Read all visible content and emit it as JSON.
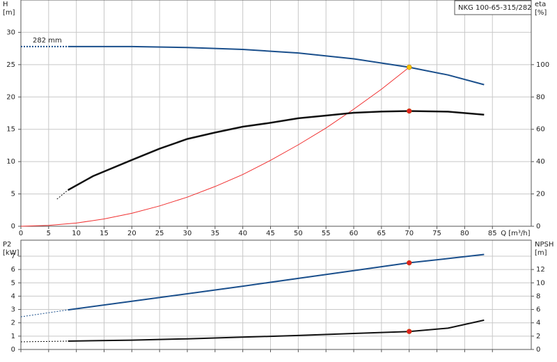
{
  "chart_data": [
    {
      "type": "line",
      "title": "NKG 100-65-315/282",
      "xlabel": "Q [m³/h]",
      "ylabel": [
        "H",
        "[m]"
      ],
      "y2label": [
        "eta",
        "[%]"
      ],
      "annotation": "282 mm",
      "xlim": [
        0,
        92
      ],
      "xticks": [
        0,
        5,
        10,
        15,
        20,
        25,
        30,
        35,
        40,
        45,
        50,
        55,
        60,
        65,
        70,
        75,
        80,
        85
      ],
      "xtick_labels": true,
      "ylim": [
        0,
        35
      ],
      "yticks": [
        0,
        5,
        10,
        15,
        20,
        25,
        30
      ],
      "y2lim": [
        0,
        140
      ],
      "y2ticks": [
        0,
        20,
        40,
        60,
        80,
        100
      ],
      "grid": true,
      "series": [
        {
          "color": "#1a4f8c",
          "width": 2,
          "dash": true,
          "axis": "y",
          "x": [
            0,
            8.5
          ],
          "values": [
            27.8,
            27.8
          ]
        },
        {
          "color": "#1a4f8c",
          "width": 2,
          "dash": false,
          "axis": "y",
          "x": [
            8.5,
            20,
            30,
            40,
            50,
            60,
            70,
            77,
            83.5
          ],
          "values": [
            27.8,
            27.8,
            27.65,
            27.35,
            26.8,
            25.9,
            24.6,
            23.4,
            21.9
          ]
        },
        {
          "color": "#f03030",
          "width": 1,
          "dash": false,
          "axis": "y",
          "x": [
            0,
            5,
            10,
            15,
            20,
            25,
            30,
            35,
            40,
            45,
            50,
            55,
            60,
            65,
            70
          ],
          "values": [
            0,
            0.13,
            0.5,
            1.13,
            2.0,
            3.14,
            4.5,
            6.15,
            8.0,
            10.2,
            12.6,
            15.2,
            18.1,
            21.2,
            24.6
          ]
        },
        {
          "color": "#111111",
          "width": 1,
          "dash": true,
          "axis": "y2",
          "x": [
            6.5,
            8.5
          ],
          "values": [
            16.8,
            22.4
          ]
        },
        {
          "color": "#111111",
          "width": 2.5,
          "dash": false,
          "axis": "y2",
          "x": [
            8.5,
            13,
            20,
            25,
            30,
            35,
            40,
            45,
            50,
            55,
            60,
            65,
            70,
            77,
            83.5
          ],
          "values": [
            22.4,
            31,
            41,
            48,
            54,
            58,
            61.6,
            64,
            66.8,
            68.5,
            70.2,
            71,
            71.3,
            70.9,
            69
          ]
        }
      ],
      "markers": [
        {
          "x": 70,
          "y": 24.6,
          "axis": "y",
          "color": "#f5c400"
        },
        {
          "x": 70,
          "y": 71.3,
          "axis": "y2",
          "color": "#e02020"
        }
      ]
    },
    {
      "type": "line",
      "ylabel": [
        "P2",
        "[kW]"
      ],
      "y2label": [
        "NPSH",
        "[m]"
      ],
      "xlim": [
        0,
        92
      ],
      "xticks": [
        0,
        5,
        10,
        15,
        20,
        25,
        30,
        35,
        40,
        45,
        50,
        55,
        60,
        65,
        70,
        75,
        80,
        85
      ],
      "xtick_labels": false,
      "ylim": [
        0,
        8.2
      ],
      "yticks": [
        0,
        1,
        2,
        3,
        4,
        5,
        6,
        7
      ],
      "y2lim": [
        0,
        16.4
      ],
      "y2ticks": [
        0,
        2,
        4,
        6,
        8,
        10,
        12
      ],
      "grid": true,
      "series": [
        {
          "color": "#1a4f8c",
          "width": 1,
          "dash": true,
          "axis": "y",
          "x": [
            0,
            8.5
          ],
          "values": [
            2.45,
            2.97
          ]
        },
        {
          "color": "#1a4f8c",
          "width": 2,
          "dash": false,
          "axis": "y",
          "x": [
            8.5,
            20,
            30,
            40,
            50,
            60,
            70,
            77,
            83.5
          ],
          "values": [
            2.97,
            3.62,
            4.18,
            4.75,
            5.33,
            5.92,
            6.5,
            6.82,
            7.13
          ]
        },
        {
          "color": "#111111",
          "width": 1,
          "dash": true,
          "axis": "y2",
          "x": [
            0,
            8.5
          ],
          "values": [
            1.15,
            1.25
          ]
        },
        {
          "color": "#111111",
          "width": 2,
          "dash": false,
          "axis": "y2",
          "x": [
            8.5,
            20,
            30,
            40,
            50,
            60,
            70,
            77,
            83.5
          ],
          "values": [
            1.25,
            1.4,
            1.6,
            1.85,
            2.1,
            2.4,
            2.7,
            3.2,
            4.4
          ]
        }
      ],
      "markers": [
        {
          "x": 70,
          "y": 6.5,
          "axis": "y",
          "color": "#e02020"
        },
        {
          "x": 70,
          "y": 2.7,
          "axis": "y2",
          "color": "#e02020"
        }
      ]
    }
  ]
}
